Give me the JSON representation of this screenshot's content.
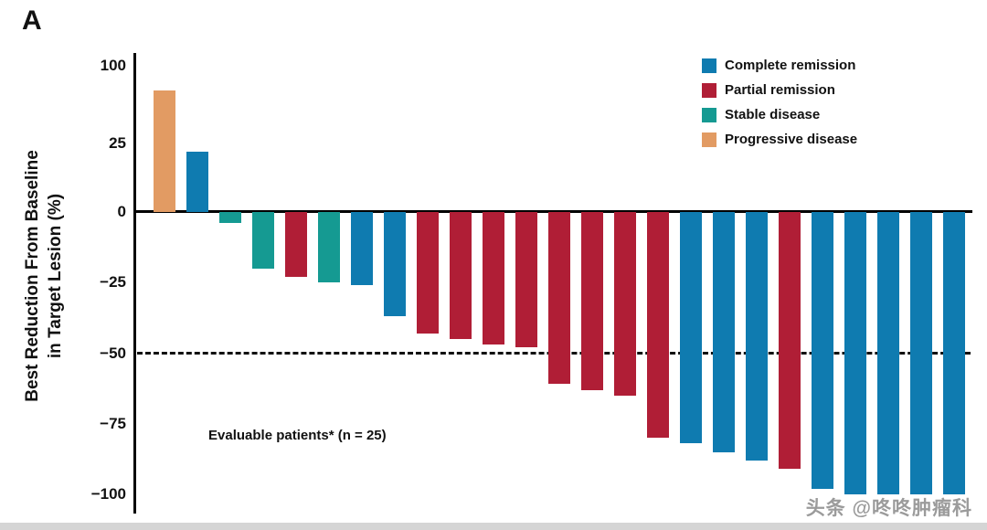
{
  "panel_label": "A",
  "watermark_text": "头条 @咚咚肿瘤科",
  "chart_data": {
    "type": "bar",
    "subtype": "waterfall",
    "title": "",
    "ylabel_line1": "Best Reduction From Baseline",
    "ylabel_line2": "in Target Lesion (%)",
    "annotation": "Evaluable patients* (n = 25)",
    "yticks": [
      100,
      25,
      0,
      -25,
      -50,
      -75,
      -100
    ],
    "ylim": [
      -100,
      100
    ],
    "reference_line_value": -50,
    "grid": false,
    "legend_position": "top-right",
    "legend": [
      {
        "key": "CR",
        "label": "Complete remission",
        "color": "#0f7bb0"
      },
      {
        "key": "PR",
        "label": "Partial remission",
        "color": "#b01e36"
      },
      {
        "key": "SD",
        "label": "Stable disease",
        "color": "#159a92"
      },
      {
        "key": "PD",
        "label": "Progressive disease",
        "color": "#e29b63"
      }
    ],
    "bars": [
      {
        "patient": 1,
        "value": 76,
        "status": "PD"
      },
      {
        "patient": 2,
        "value": 22,
        "status": "CR"
      },
      {
        "patient": 3,
        "value": -4,
        "status": "SD"
      },
      {
        "patient": 4,
        "value": -20,
        "status": "SD"
      },
      {
        "patient": 5,
        "value": -23,
        "status": "PR"
      },
      {
        "patient": 6,
        "value": -25,
        "status": "SD"
      },
      {
        "patient": 7,
        "value": -26,
        "status": "CR"
      },
      {
        "patient": 8,
        "value": -37,
        "status": "CR"
      },
      {
        "patient": 9,
        "value": -43,
        "status": "PR"
      },
      {
        "patient": 10,
        "value": -45,
        "status": "PR"
      },
      {
        "patient": 11,
        "value": -47,
        "status": "PR"
      },
      {
        "patient": 12,
        "value": -48,
        "status": "PR"
      },
      {
        "patient": 13,
        "value": -61,
        "status": "PR"
      },
      {
        "patient": 14,
        "value": -63,
        "status": "PR"
      },
      {
        "patient": 15,
        "value": -65,
        "status": "PR"
      },
      {
        "patient": 16,
        "value": -80,
        "status": "PR"
      },
      {
        "patient": 17,
        "value": -82,
        "status": "CR"
      },
      {
        "patient": 18,
        "value": -85,
        "status": "CR"
      },
      {
        "patient": 19,
        "value": -88,
        "status": "CR"
      },
      {
        "patient": 20,
        "value": -91,
        "status": "PR"
      },
      {
        "patient": 21,
        "value": -98,
        "status": "CR"
      },
      {
        "patient": 22,
        "value": -100,
        "status": "CR"
      },
      {
        "patient": 23,
        "value": -100,
        "status": "CR"
      },
      {
        "patient": 24,
        "value": -100,
        "status": "CR"
      },
      {
        "patient": 25,
        "value": -100,
        "status": "CR"
      }
    ]
  }
}
